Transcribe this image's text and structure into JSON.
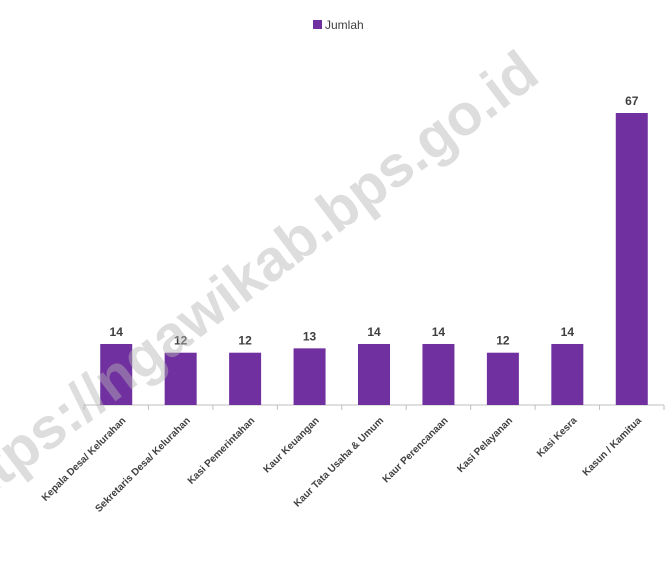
{
  "watermark": "https://ngawikab.bps.go.id",
  "colors": {
    "bar": "#7030A0",
    "axis": "#bfbfbf",
    "text": "#404040"
  },
  "legend": {
    "placement": "top-center"
  },
  "chart_data": {
    "type": "bar",
    "categories": [
      "Kepala Desa/ Kelurahan",
      "Sekretaris Desa/ Kelurahan",
      "Kasi Pemerintahan",
      "Kaur Keuangan",
      "Kaur Tata Usaha & Umum",
      "Kaur Perencanaan",
      "Kasi Pelayanan",
      "Kasi Kesra",
      "Kasun / Kamitua"
    ],
    "series": [
      {
        "name": "Jumlah",
        "values": [
          14,
          12,
          12,
          13,
          14,
          14,
          12,
          14,
          67
        ]
      }
    ],
    "title": "",
    "xlabel": "",
    "ylabel": "",
    "ylim": [
      0,
      70
    ],
    "grid": false,
    "data_labels": true
  }
}
